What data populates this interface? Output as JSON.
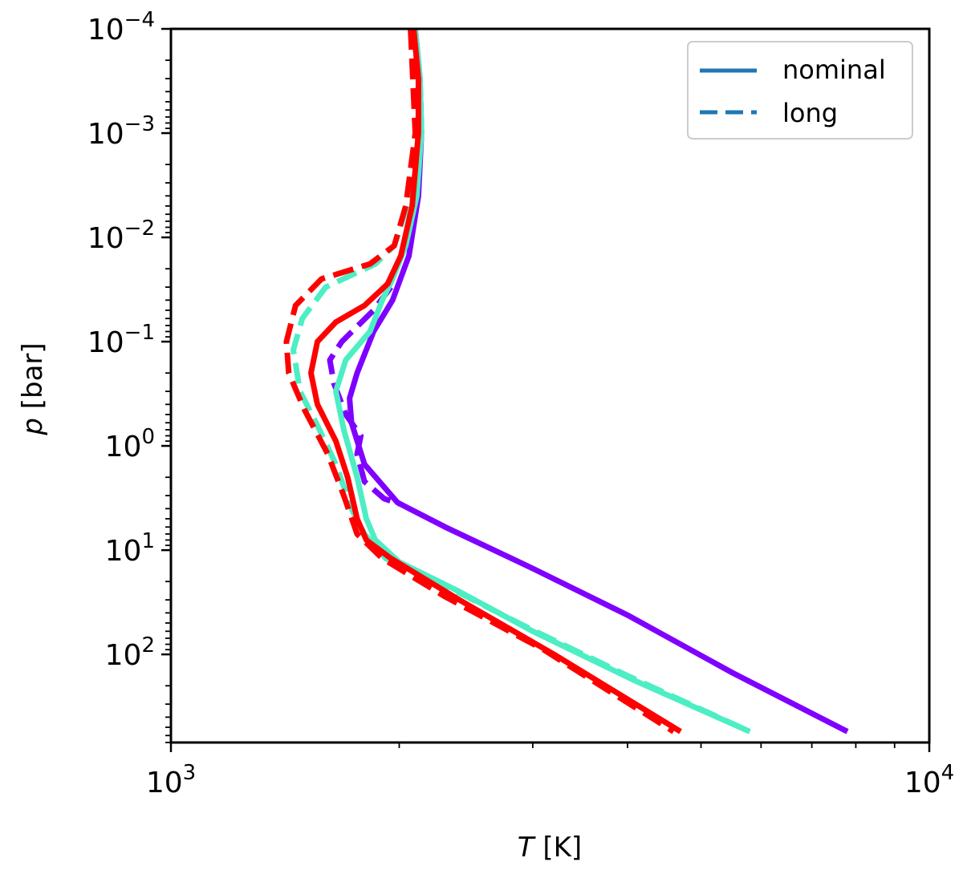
{
  "chart_data": {
    "type": "line",
    "xlabel": "T [K]",
    "xlabel_italic": "T",
    "xlabel_unit": " [K]",
    "ylabel": "p [bar]",
    "ylabel_italic": "p",
    "ylabel_unit": " [bar]",
    "x_scale": "log",
    "y_scale": "log",
    "y_inverted": true,
    "xlim": [
      1000,
      10000
    ],
    "ylim": [
      0.0001,
      700
    ],
    "x_ticks": [
      {
        "value": 1000,
        "base": "10",
        "exp": "3"
      },
      {
        "value": 10000,
        "base": "10",
        "exp": "4"
      }
    ],
    "y_ticks": [
      {
        "value": 0.0001,
        "base": "10",
        "exp": "−4"
      },
      {
        "value": 0.001,
        "base": "10",
        "exp": "−3"
      },
      {
        "value": 0.01,
        "base": "10",
        "exp": "−2"
      },
      {
        "value": 0.1,
        "base": "10",
        "exp": "−1"
      },
      {
        "value": 1,
        "base": "10",
        "exp": "0"
      },
      {
        "value": 10,
        "base": "10",
        "exp": "1"
      },
      {
        "value": 100,
        "base": "10",
        "exp": "2"
      }
    ],
    "grid": false,
    "legend": {
      "position": "top-right",
      "entries": [
        {
          "label": "nominal",
          "style": "solid",
          "color": "#1f77b4"
        },
        {
          "label": "long",
          "style": "dashed",
          "color": "#1f77b4"
        }
      ]
    },
    "series": [
      {
        "color": "#7f00ff",
        "style": "solid",
        "points": [
          [
            2100,
            0.0001
          ],
          [
            2130,
            0.0003
          ],
          [
            2140,
            0.001
          ],
          [
            2120,
            0.004
          ],
          [
            2060,
            0.015
          ],
          [
            1960,
            0.04
          ],
          [
            1850,
            0.08
          ],
          [
            1760,
            0.2
          ],
          [
            1720,
            0.35
          ],
          [
            1730,
            0.6
          ],
          [
            1800,
            1.5
          ],
          [
            1990,
            3.5
          ],
          [
            2300,
            6
          ],
          [
            3000,
            15
          ],
          [
            4000,
            42
          ],
          [
            5500,
            150
          ],
          [
            7800,
            550
          ]
        ]
      },
      {
        "color": "#7f00ff",
        "style": "dashed",
        "points": [
          [
            1950,
            0.03
          ],
          [
            1850,
            0.05
          ],
          [
            1680,
            0.1
          ],
          [
            1620,
            0.15
          ],
          [
            1640,
            0.25
          ],
          [
            1700,
            0.5
          ],
          [
            1780,
            0.8
          ],
          [
            1760,
            1.2
          ],
          [
            1800,
            2.2
          ],
          [
            1910,
            3.2
          ],
          [
            2000,
            3.6
          ]
        ]
      },
      {
        "color": "#4deec4",
        "style": "solid",
        "points": [
          [
            2100,
            0.0001
          ],
          [
            2130,
            0.0003
          ],
          [
            2140,
            0.001
          ],
          [
            2110,
            0.004
          ],
          [
            2040,
            0.012
          ],
          [
            1960,
            0.025
          ],
          [
            1900,
            0.04
          ],
          [
            1830,
            0.08
          ],
          [
            1700,
            0.15
          ],
          [
            1650,
            0.3
          ],
          [
            1690,
            0.7
          ],
          [
            1760,
            2
          ],
          [
            1810,
            5
          ],
          [
            1860,
            8
          ],
          [
            2000,
            13
          ],
          [
            2400,
            25
          ],
          [
            3000,
            60
          ],
          [
            4100,
            180
          ],
          [
            5800,
            550
          ]
        ]
      },
      {
        "color": "#4deec4",
        "style": "dashed",
        "points": [
          [
            2080,
            0.0001
          ],
          [
            2110,
            0.001
          ],
          [
            2050,
            0.005
          ],
          [
            1970,
            0.012
          ],
          [
            1860,
            0.018
          ],
          [
            1600,
            0.03
          ],
          [
            1490,
            0.06
          ],
          [
            1450,
            0.12
          ],
          [
            1480,
            0.3
          ],
          [
            1570,
            0.7
          ],
          [
            1650,
            1.5
          ],
          [
            1730,
            4
          ],
          [
            1800,
            7
          ],
          [
            1920,
            12
          ],
          [
            2300,
            22
          ],
          [
            2950,
            55
          ],
          [
            4000,
            160
          ],
          [
            5800,
            550
          ]
        ]
      },
      {
        "color": "#ff0000",
        "style": "solid",
        "points": [
          [
            2090,
            0.0001
          ],
          [
            2120,
            0.0003
          ],
          [
            2120,
            0.001
          ],
          [
            2080,
            0.005
          ],
          [
            2010,
            0.015
          ],
          [
            1930,
            0.028
          ],
          [
            1800,
            0.045
          ],
          [
            1650,
            0.065
          ],
          [
            1560,
            0.1
          ],
          [
            1530,
            0.2
          ],
          [
            1560,
            0.4
          ],
          [
            1650,
            0.9
          ],
          [
            1710,
            2
          ],
          [
            1760,
            5
          ],
          [
            1810,
            8
          ],
          [
            1950,
            12
          ],
          [
            2400,
            30
          ],
          [
            3200,
            100
          ],
          [
            4700,
            550
          ]
        ]
      },
      {
        "color": "#ff0000",
        "style": "dashed",
        "points": [
          [
            2070,
            0.0001
          ],
          [
            2100,
            0.001
          ],
          [
            2040,
            0.005
          ],
          [
            1970,
            0.012
          ],
          [
            1830,
            0.018
          ],
          [
            1580,
            0.025
          ],
          [
            1460,
            0.045
          ],
          [
            1420,
            0.1
          ],
          [
            1430,
            0.2
          ],
          [
            1500,
            0.45
          ],
          [
            1610,
            1.2
          ],
          [
            1690,
            3
          ],
          [
            1760,
            7
          ],
          [
            1900,
            12
          ],
          [
            2300,
            28
          ],
          [
            3100,
            90
          ],
          [
            4600,
            550
          ]
        ]
      }
    ]
  }
}
